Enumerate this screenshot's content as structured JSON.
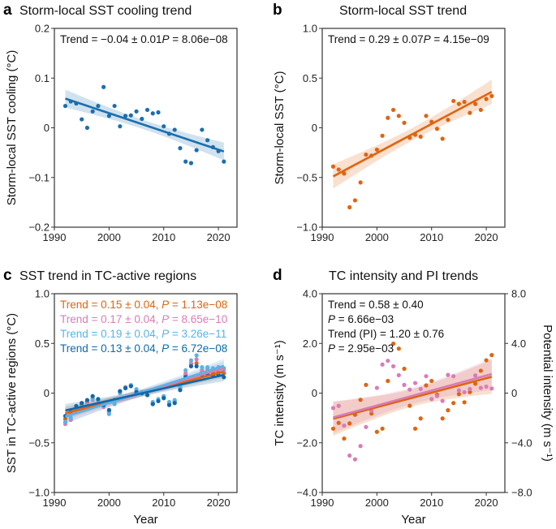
{
  "chart_data": [
    {
      "letter": "a",
      "type": "scatter",
      "title": "Storm-local SST cooling trend",
      "xlabel": "",
      "ylabel": "Storm-local SST cooling (°C)",
      "xlim": [
        1990,
        2023.4
      ],
      "ylim": [
        -0.2,
        0.2
      ],
      "xticks": [
        "1990",
        "2000",
        "2010",
        "2020"
      ],
      "yticks": [
        "0.2",
        "0.1",
        "0",
        "−0.1",
        "−0.2"
      ],
      "grid": false,
      "annotations": [
        {
          "trend": "Trend = −0.04 ± 0.01",
          "p": "8.06e−08",
          "color": "#111111"
        }
      ],
      "series": [
        {
          "color": "#1a6fae",
          "fit": "linear",
          "x": [
            1992,
            1993,
            1994,
            1995,
            1996,
            1997,
            1998,
            1999,
            2000,
            2001,
            2002,
            2003,
            2004,
            2005,
            2006,
            2007,
            2008,
            2009,
            2010,
            2011,
            2012,
            2013,
            2014,
            2015,
            2016,
            2017,
            2018,
            2019,
            2020,
            2021
          ],
          "y": [
            0.044,
            0.053,
            0.049,
            0.017,
            0.0,
            0.033,
            0.044,
            0.082,
            0.024,
            0.044,
            0.003,
            0.024,
            0.025,
            0.033,
            0.018,
            0.036,
            0.029,
            0.031,
            0.003,
            -0.012,
            -0.004,
            -0.041,
            -0.068,
            -0.071,
            -0.045,
            -0.004,
            -0.025,
            -0.039,
            -0.047,
            -0.068
          ]
        }
      ]
    },
    {
      "letter": "b",
      "type": "scatter",
      "title": "Storm-local SST trend",
      "xlabel": "",
      "ylabel": "Storm-local SST (°C)",
      "xlim": [
        1990,
        2023.4
      ],
      "ylim": [
        -1.0,
        1.0
      ],
      "xticks": [
        "1990",
        "2000",
        "2010",
        "2020"
      ],
      "yticks": [
        "1.0",
        "0.5",
        "0",
        "−0.5",
        "−1.0"
      ],
      "grid": false,
      "annotations": [
        {
          "trend": "Trend = 0.29 ± 0.07",
          "p": "4.15e−09",
          "color": "#111111"
        }
      ],
      "series": [
        {
          "color": "#e0640f",
          "fit": "linear",
          "x": [
            1992,
            1993,
            1994,
            1995,
            1996,
            1997,
            1998,
            1999,
            2000,
            2001,
            2002,
            2003,
            2004,
            2005,
            2006,
            2007,
            2008,
            2009,
            2010,
            2011,
            2012,
            2013,
            2014,
            2015,
            2016,
            2017,
            2018,
            2019,
            2020,
            2021
          ],
          "y": [
            -0.39,
            -0.42,
            -0.46,
            -0.8,
            -0.73,
            -0.55,
            -0.27,
            -0.28,
            -0.22,
            -0.08,
            0.1,
            0.18,
            0.12,
            0.05,
            -0.1,
            -0.07,
            -0.09,
            0.12,
            0.06,
            -0.01,
            -0.11,
            0.08,
            0.27,
            0.24,
            0.26,
            0.15,
            0.24,
            0.18,
            0.29,
            0.32
          ]
        }
      ]
    },
    {
      "letter": "c",
      "type": "scatter",
      "title": "SST trend in TC-active regions",
      "xlabel": "Year",
      "ylabel": "SST in TC-active regions (°C)",
      "xlim": [
        1990,
        2023.4
      ],
      "ylim": [
        -1.0,
        1.0
      ],
      "xticks": [
        "1990",
        "2000",
        "2010",
        "2020"
      ],
      "yticks": [
        "1.0",
        "0.5",
        "0",
        "−0.5",
        "−1.0"
      ],
      "grid": false,
      "annotations": [
        {
          "trend": "Trend = 0.15 ± 0.04, ",
          "p": "1.13e−08",
          "color": "#e0640f"
        },
        {
          "trend": "Trend = 0.17 ± 0.04, ",
          "p": "8.65e−10",
          "color": "#d97cb6"
        },
        {
          "trend": "Trend = 0.19 ± 0.04, ",
          "p": "3.26e−11",
          "color": "#56b4e9"
        },
        {
          "trend": "Trend = 0.13 ± 0.04, ",
          "p": "6.72e−08",
          "color": "#0b6aad"
        }
      ],
      "series": [
        {
          "color": "#e0640f",
          "fit": "linear",
          "x": [
            1992,
            1993,
            1994,
            1995,
            1996,
            1997,
            1998,
            1999,
            2000,
            2001,
            2002,
            2003,
            2004,
            2005,
            2006,
            2007,
            2008,
            2009,
            2010,
            2011,
            2012,
            2013,
            2014,
            2015,
            2016,
            2017,
            2018,
            2019,
            2020,
            2021
          ],
          "y": [
            -0.26,
            -0.21,
            -0.15,
            -0.12,
            -0.09,
            -0.05,
            -0.07,
            -0.13,
            -0.18,
            -0.08,
            0.01,
            0.05,
            0.07,
            0.01,
            0.0,
            -0.02,
            -0.11,
            -0.08,
            -0.05,
            -0.11,
            -0.09,
            0.04,
            0.18,
            0.29,
            0.3,
            0.21,
            0.22,
            0.21,
            0.21,
            0.2
          ]
        },
        {
          "color": "#d97cb6",
          "fit": "linear",
          "x": [
            1992,
            1993,
            1994,
            1995,
            1996,
            1997,
            1998,
            1999,
            2000,
            2001,
            2002,
            2003,
            2004,
            2005,
            2006,
            2007,
            2008,
            2009,
            2010,
            2011,
            2012,
            2013,
            2014,
            2015,
            2016,
            2017,
            2018,
            2019,
            2020,
            2021
          ],
          "y": [
            -0.31,
            -0.27,
            -0.18,
            -0.14,
            -0.11,
            -0.07,
            -0.08,
            -0.14,
            -0.19,
            -0.07,
            0.02,
            0.06,
            0.08,
            0.03,
            0.01,
            -0.02,
            -0.1,
            -0.07,
            -0.04,
            -0.1,
            -0.08,
            0.05,
            0.2,
            0.3,
            0.34,
            0.23,
            0.24,
            0.24,
            0.24,
            0.23
          ]
        },
        {
          "color": "#56b4e9",
          "fit": "linear",
          "x": [
            1992,
            1993,
            1994,
            1995,
            1996,
            1997,
            1998,
            1999,
            2000,
            2001,
            2002,
            2003,
            2004,
            2005,
            2006,
            2007,
            2008,
            2009,
            2010,
            2011,
            2012,
            2013,
            2014,
            2015,
            2016,
            2017,
            2018,
            2019,
            2020,
            2021
          ],
          "y": [
            -0.29,
            -0.25,
            -0.19,
            -0.15,
            -0.12,
            -0.06,
            -0.07,
            -0.13,
            -0.21,
            -0.11,
            0.0,
            0.05,
            0.08,
            0.04,
            0.01,
            -0.02,
            -0.09,
            -0.06,
            -0.03,
            -0.09,
            -0.07,
            0.06,
            0.23,
            0.33,
            0.38,
            0.26,
            0.26,
            0.25,
            0.26,
            0.25
          ]
        },
        {
          "color": "#0b6aad",
          "fit": "linear",
          "x": [
            1992,
            1993,
            1994,
            1995,
            1996,
            1997,
            1998,
            1999,
            2000,
            2001,
            2002,
            2003,
            2004,
            2005,
            2006,
            2007,
            2008,
            2009,
            2010,
            2011,
            2012,
            2013,
            2014,
            2015,
            2016,
            2017,
            2018,
            2019,
            2020,
            2021
          ],
          "y": [
            -0.23,
            -0.18,
            -0.13,
            -0.1,
            -0.07,
            -0.03,
            -0.06,
            -0.12,
            -0.17,
            -0.07,
            0.02,
            0.05,
            0.07,
            0.01,
            0.0,
            -0.02,
            -0.11,
            -0.08,
            -0.05,
            -0.12,
            -0.1,
            0.03,
            0.16,
            0.27,
            0.27,
            0.18,
            0.19,
            0.18,
            0.18,
            0.16
          ]
        }
      ]
    },
    {
      "letter": "d",
      "type": "scatter",
      "title": "TC intensity and PI trends",
      "xlabel": "Year",
      "ylabel": "TC intensity (m s⁻¹)",
      "ylabel_right": "Potential intensity (m s⁻¹)",
      "xlim": [
        1990,
        2023.4
      ],
      "ylim": [
        -4.0,
        4.0
      ],
      "ylim_right": [
        -8.0,
        8.0
      ],
      "xticks": [
        "1990",
        "2000",
        "2010",
        "2020"
      ],
      "yticks": [
        "4.0",
        "2.0",
        "0",
        "−2.0",
        "−4.0"
      ],
      "yticks_right": [
        "8.0",
        "4.0",
        "0",
        "−4.0",
        "−8.0"
      ],
      "grid": false,
      "annotations": [
        {
          "trend": "Trend = 0.58 ± 0.40",
          "p": "",
          "color": "#111111"
        },
        {
          "trend": "",
          "p": "6.66e−03",
          "color": "#111111"
        },
        {
          "trend": "Trend (PI) = 1.20 ± 0.76",
          "p": "",
          "color": "#111111"
        },
        {
          "trend": "",
          "p": "2.95e−03",
          "color": "#111111"
        }
      ],
      "series": [
        {
          "color": "#e0640f",
          "fit": "linear",
          "axis": "left",
          "x": [
            1992,
            1993,
            1994,
            1995,
            1996,
            1997,
            1998,
            1999,
            2000,
            2001,
            2002,
            2003,
            2004,
            2005,
            2006,
            2007,
            2008,
            2009,
            2010,
            2011,
            2012,
            2013,
            2014,
            2015,
            2016,
            2017,
            2018,
            2019,
            2020,
            2021
          ],
          "y": [
            -1.43,
            -1.2,
            -1.83,
            -1.22,
            -0.87,
            -0.27,
            0.33,
            -0.82,
            -1.56,
            -1.43,
            0.49,
            1.99,
            1.79,
            0.98,
            -0.51,
            -1.43,
            -1.02,
            0.31,
            0.49,
            -0.07,
            -1.02,
            -0.69,
            -0.4,
            -0.04,
            -0.37,
            0.04,
            0.38,
            0.9,
            1.32,
            1.53
          ]
        },
        {
          "color": "#d97cb6",
          "fit": "linear",
          "axis": "right",
          "x": [
            1992,
            1993,
            1994,
            1995,
            1996,
            1997,
            1998,
            1999,
            2000,
            2001,
            2002,
            2003,
            2004,
            2005,
            2006,
            2007,
            2008,
            2009,
            2010,
            2011,
            2012,
            2013,
            2014,
            2015,
            2016,
            2017,
            2018,
            2019,
            2020,
            2021
          ],
          "y": [
            -1.2,
            -1.03,
            -2.62,
            -5.03,
            -5.33,
            -4.26,
            -2.73,
            -1.42,
            0.42,
            2.3,
            2.6,
            2.16,
            1.44,
            0.66,
            0.28,
            0.81,
            0.33,
            1.36,
            -0.48,
            -0.24,
            -0.63,
            1.46,
            1.36,
            0.22,
            0.07,
            0.33,
            1.42,
            0.42,
            0.52,
            0.37
          ]
        }
      ]
    }
  ]
}
